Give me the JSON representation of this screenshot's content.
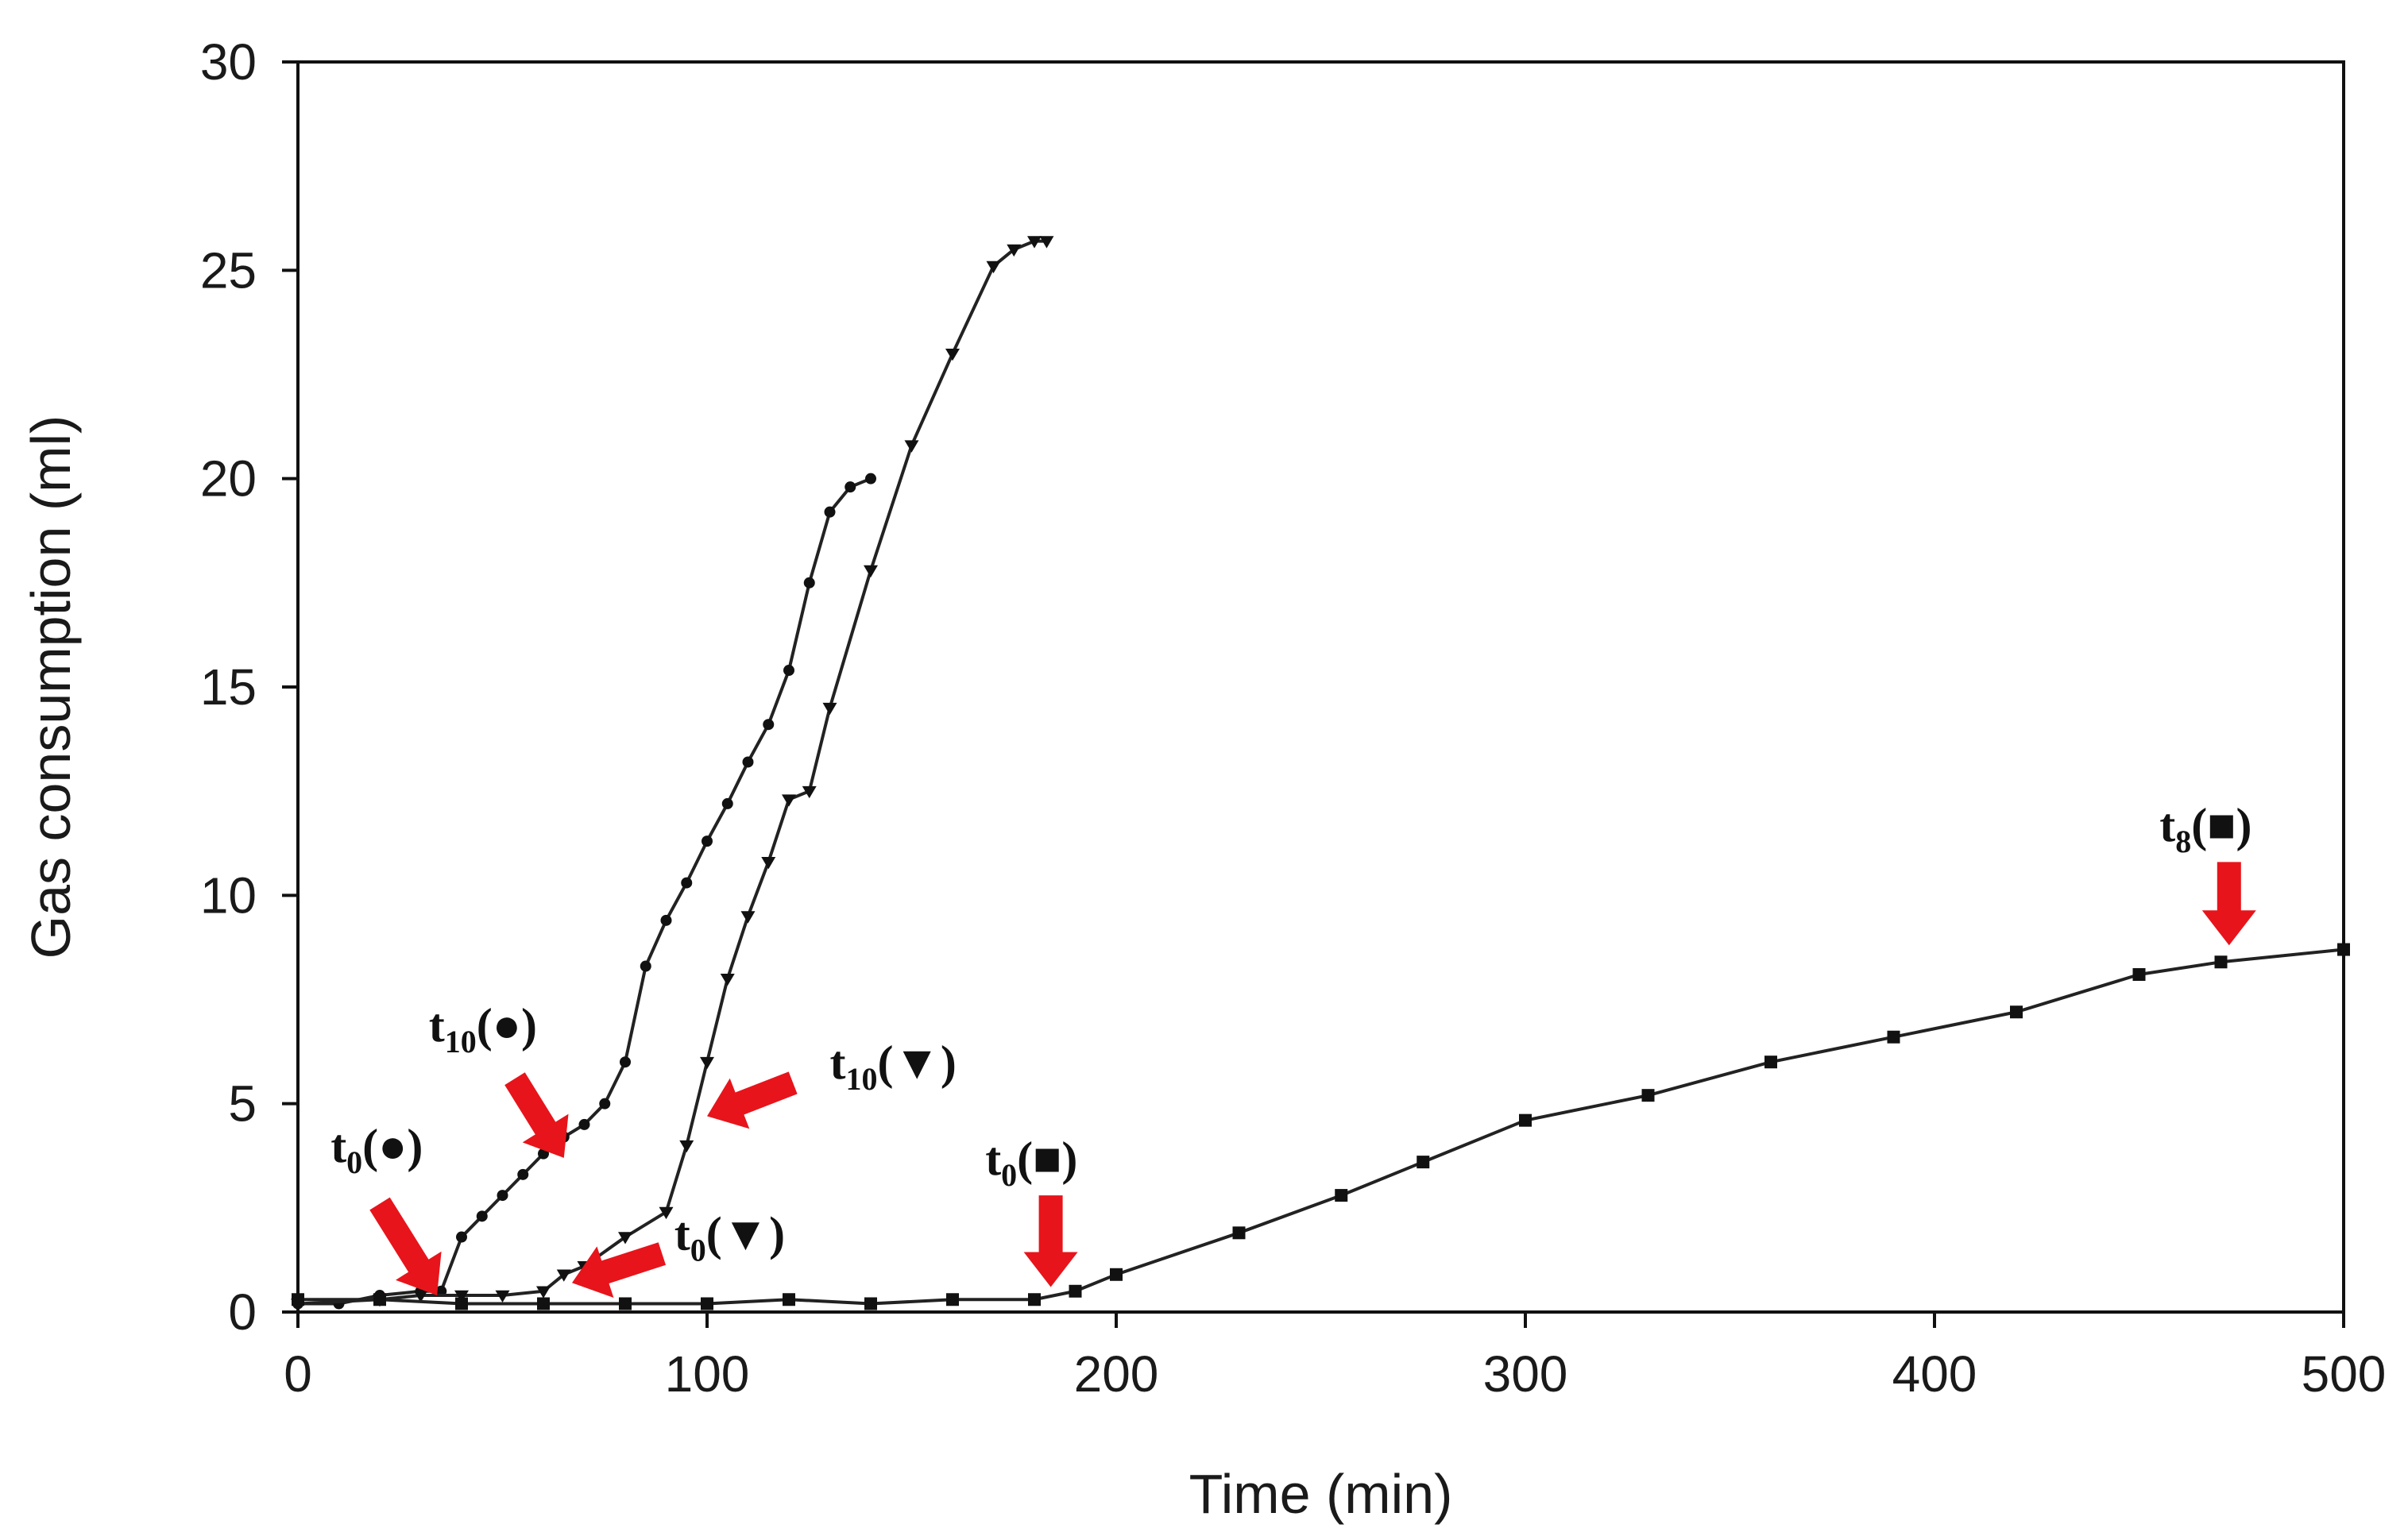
{
  "chart_data": {
    "type": "line",
    "title": "",
    "xlabel": "Time (min)",
    "ylabel": "Gas consumption (ml)",
    "xlim": [
      0,
      500
    ],
    "ylim": [
      0,
      30
    ],
    "xticks": [
      0,
      100,
      200,
      300,
      400,
      500
    ],
    "yticks": [
      0,
      5,
      10,
      15,
      20,
      25,
      30
    ],
    "grid": false,
    "legend": "none",
    "colors": {
      "line": "#222222",
      "marker": "#111111",
      "arrow": "#e8141b",
      "axis": "#111111"
    },
    "series": [
      {
        "name": "circle",
        "marker": "circle",
        "x": [
          0,
          10,
          20,
          30,
          35,
          40,
          45,
          50,
          55,
          60,
          65,
          70,
          75,
          80,
          85,
          90,
          95,
          100,
          105,
          110,
          115,
          120,
          125,
          130,
          135,
          140
        ],
        "y": [
          0.2,
          0.2,
          0.4,
          0.5,
          0.5,
          1.8,
          2.3,
          2.8,
          3.3,
          3.8,
          4.2,
          4.5,
          5.0,
          6.0,
          8.3,
          9.4,
          10.3,
          11.3,
          12.2,
          13.2,
          14.1,
          15.4,
          17.5,
          19.2,
          19.8,
          20.0
        ]
      },
      {
        "name": "triangle",
        "marker": "triangle",
        "x": [
          0,
          20,
          30,
          40,
          50,
          60,
          65,
          70,
          80,
          90,
          95,
          100,
          105,
          110,
          115,
          120,
          125,
          130,
          140,
          150,
          160,
          170,
          175,
          180,
          183
        ],
        "y": [
          0.2,
          0.3,
          0.4,
          0.4,
          0.4,
          0.5,
          0.9,
          1.1,
          1.8,
          2.4,
          4.0,
          6.0,
          8.0,
          9.5,
          10.8,
          12.3,
          12.5,
          14.5,
          17.8,
          20.8,
          23.0,
          25.1,
          25.5,
          25.7,
          25.7
        ]
      },
      {
        "name": "square",
        "marker": "square",
        "x": [
          0,
          20,
          40,
          60,
          80,
          100,
          120,
          140,
          160,
          180,
          190,
          200,
          230,
          255,
          275,
          300,
          330,
          360,
          390,
          420,
          450,
          470,
          500
        ],
        "y": [
          0.3,
          0.3,
          0.2,
          0.2,
          0.2,
          0.2,
          0.3,
          0.2,
          0.3,
          0.3,
          0.5,
          0.9,
          1.9,
          2.8,
          3.6,
          4.6,
          5.2,
          6.0,
          6.6,
          7.2,
          8.1,
          8.4,
          8.7
        ]
      }
    ],
    "annotations": [
      {
        "base": "t",
        "sub": "0",
        "symbol": "●",
        "tip": [
          34,
          0.4
        ],
        "from": [
          20,
          2.6
        ],
        "label_at": [
          8,
          3.6
        ]
      },
      {
        "base": "t",
        "sub": "10",
        "symbol": "●",
        "tip": [
          65,
          3.7
        ],
        "from": [
          53,
          5.6
        ],
        "label_at": [
          32,
          6.5
        ]
      },
      {
        "base": "t",
        "sub": "10",
        "symbol": "▼",
        "tip": [
          100,
          4.7
        ],
        "from": [
          121,
          5.5
        ],
        "label_at": [
          130,
          5.6
        ]
      },
      {
        "base": "t",
        "sub": "0",
        "symbol": "▼",
        "tip": [
          67,
          0.7
        ],
        "from": [
          89,
          1.4
        ],
        "label_at": [
          92,
          1.5
        ]
      },
      {
        "base": "t",
        "sub": "0",
        "symbol": "■",
        "tip": [
          184,
          0.6
        ],
        "from": [
          184,
          2.8
        ],
        "label_at": [
          168,
          3.3
        ]
      },
      {
        "base": "t",
        "sub": "8",
        "symbol": "■",
        "tip": [
          472,
          8.8
        ],
        "from": [
          472,
          10.8
        ],
        "label_at": [
          455,
          11.3
        ]
      }
    ]
  }
}
